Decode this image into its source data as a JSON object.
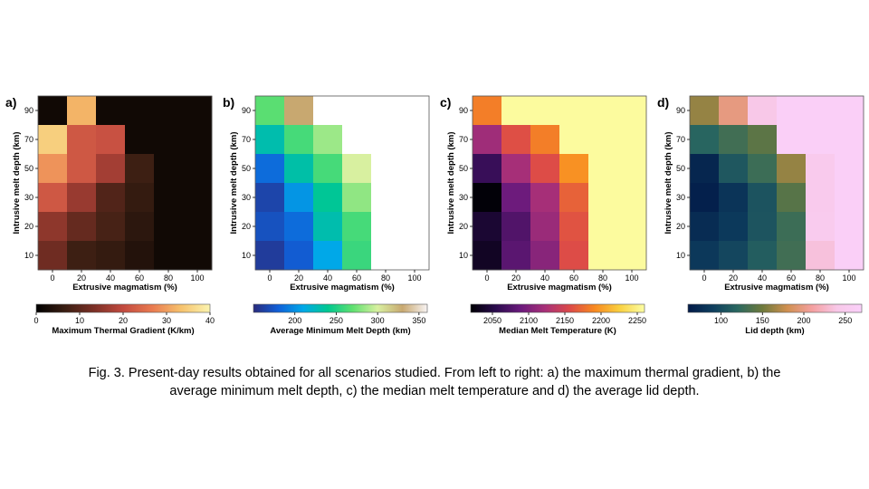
{
  "caption": "Fig. 3. Present-day results obtained for all scenarios studied. From left to right: a) the maximum thermal gradient, b) the average minimum melt depth, c) the median melt temperature and d) the average lid depth.",
  "chart_data": [
    {
      "type": "heatmap",
      "panel_label": "a)",
      "xlabel": "Extrusive magmatism (%)",
      "ylabel": "Intrusive melt depth (km)",
      "x": [
        0,
        20,
        40,
        60,
        80,
        100
      ],
      "y": [
        10,
        20,
        30,
        50,
        70,
        90
      ],
      "colorbar": {
        "label": "Maximum Thermal Gradient (K/km)",
        "range": [
          0,
          40
        ],
        "ticks": [
          0,
          10,
          20,
          30,
          40
        ],
        "colors": [
          "#000000",
          "#3a1e12",
          "#7c3026",
          "#c24a3f",
          "#e97a50",
          "#f6c26d",
          "#fbf4b0"
        ]
      },
      "values": [
        [
          2,
          32,
          2,
          2,
          2,
          2
        ],
        [
          35,
          22,
          21,
          2,
          2,
          2
        ],
        [
          29,
          22,
          17,
          7,
          2,
          2
        ],
        [
          22,
          16,
          9,
          6,
          2,
          2
        ],
        [
          15,
          11,
          8,
          5,
          2,
          2
        ],
        [
          12,
          7,
          6,
          4,
          2,
          2
        ]
      ]
    },
    {
      "type": "heatmap",
      "panel_label": "b)",
      "xlabel": "Extrusive magmatism (%)",
      "ylabel": "Intrusive melt depth (km)",
      "x": [
        0,
        20,
        40,
        60,
        80,
        100
      ],
      "y": [
        10,
        20,
        30,
        50,
        70,
        90
      ],
      "colorbar": {
        "label": "Average Minimum Melt Depth (km)",
        "range": [
          150,
          360
        ],
        "ticks": [
          200,
          250,
          300,
          350
        ],
        "colors": [
          "#2a2a7c",
          "#1060d8",
          "#00a8e8",
          "#00c890",
          "#60e070",
          "#d8f0a0",
          "#c8a870",
          "#f8f4f4"
        ]
      },
      "values": [
        [
          268,
          330,
          null,
          null,
          null,
          null
        ],
        [
          230,
          262,
          285,
          null,
          null,
          null
        ],
        [
          185,
          232,
          262,
          300,
          null,
          null
        ],
        [
          165,
          202,
          238,
          282,
          null,
          null
        ],
        [
          172,
          185,
          230,
          262,
          null,
          null
        ],
        [
          160,
          178,
          210,
          258,
          null,
          null
        ]
      ]
    },
    {
      "type": "heatmap",
      "panel_label": "c)",
      "xlabel": "Extrusive magmatism (%)",
      "ylabel": "Intrusive melt depth (km)",
      "x": [
        0,
        20,
        40,
        60,
        80,
        100
      ],
      "y": [
        10,
        20,
        30,
        50,
        70,
        90
      ],
      "colorbar": {
        "label": "Median Melt Temperature (K)",
        "range": [
          2020,
          2260
        ],
        "ticks": [
          2050,
          2100,
          2150,
          2200,
          2250
        ],
        "colors": [
          "#000004",
          "#2a0b4d",
          "#6a1a7c",
          "#a83078",
          "#dc4a48",
          "#f88a20",
          "#f9d040",
          "#fcfea4"
        ]
      },
      "values": [
        [
          2185,
          2258,
          2258,
          2258,
          2258,
          2258
        ],
        [
          2118,
          2160,
          2185,
          2258,
          2258,
          2258
        ],
        [
          2062,
          2122,
          2158,
          2195,
          2258,
          2258
        ],
        [
          2022,
          2090,
          2122,
          2170,
          2258,
          2258
        ],
        [
          2042,
          2075,
          2115,
          2162,
          2258,
          2258
        ],
        [
          2035,
          2080,
          2105,
          2158,
          2258,
          2258
        ]
      ]
    },
    {
      "type": "heatmap",
      "panel_label": "d)",
      "xlabel": "Extrusive magmatism (%)",
      "ylabel": "Intrusive melt depth (km)",
      "x": [
        0,
        20,
        40,
        60,
        80,
        100
      ],
      "y": [
        10,
        20,
        30,
        50,
        70,
        90
      ],
      "colorbar": {
        "label": "Lid depth (km)",
        "range": [
          60,
          270
        ],
        "ticks": [
          100,
          150,
          200,
          250
        ],
        "colors": [
          "#021a48",
          "#0e3e5e",
          "#2a6860",
          "#6e7a3c",
          "#d09050",
          "#f4a0a0",
          "#f8c8e8",
          "#fad0fa"
        ]
      },
      "values": [
        [
          162,
          198,
          240,
          265,
          265,
          265
        ],
        [
          118,
          130,
          142,
          265,
          265,
          265
        ],
        [
          70,
          108,
          128,
          162,
          248,
          265
        ],
        [
          65,
          82,
          105,
          140,
          248,
          265
        ],
        [
          75,
          86,
          106,
          128,
          250,
          265
        ],
        [
          85,
          96,
          112,
          130,
          235,
          265
        ]
      ]
    }
  ]
}
